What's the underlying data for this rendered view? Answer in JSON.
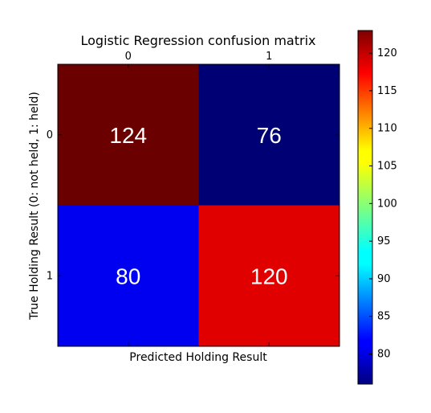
{
  "chart_data": {
    "type": "heatmap",
    "title": "Logistic Regression confusion matrix",
    "xlabel": "Predicted Holding Result",
    "ylabel": "True Holding Result (0: not held, 1: held)",
    "x_categories": [
      "0",
      "1"
    ],
    "y_categories": [
      "0",
      "1"
    ],
    "values": [
      [
        124,
        76
      ],
      [
        80,
        120
      ]
    ],
    "colormap": "jet",
    "colorbar": {
      "range": [
        76,
        123
      ],
      "ticks": [
        "80",
        "85",
        "90",
        "95",
        "100",
        "105",
        "110",
        "115",
        "120"
      ]
    },
    "cell_colors": [
      [
        "#6b0000",
        "#000075"
      ],
      [
        "#0000f0",
        "#e00000"
      ]
    ]
  }
}
